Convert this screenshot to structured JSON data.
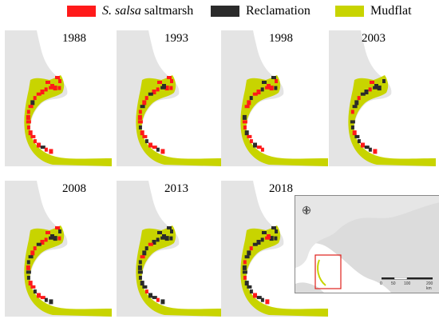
{
  "legend": {
    "items": [
      {
        "label_italic": "S. salsa",
        "label_rest": " saltmarsh",
        "color": "#ff1a1a"
      },
      {
        "label": "Reclamation",
        "color": "#2b2b2b"
      },
      {
        "label": "Mudflat",
        "color": "#c8d400"
      }
    ]
  },
  "colors": {
    "land": "#e4e4e4",
    "saltmarsh": "#ff1a1a",
    "reclamation": "#2b2b2b",
    "mudflat": "#c8d400",
    "highlight": "#e0201a"
  },
  "panels": [
    {
      "year": "1988"
    },
    {
      "year": "1993"
    },
    {
      "year": "1998"
    },
    {
      "year": "2003"
    },
    {
      "year": "2008"
    },
    {
      "year": "2013"
    },
    {
      "year": "2018"
    }
  ],
  "inset": {
    "scale_labels": [
      "0",
      "50",
      "100",
      "",
      "200 km"
    ],
    "compass": "north-arrow-icon"
  }
}
